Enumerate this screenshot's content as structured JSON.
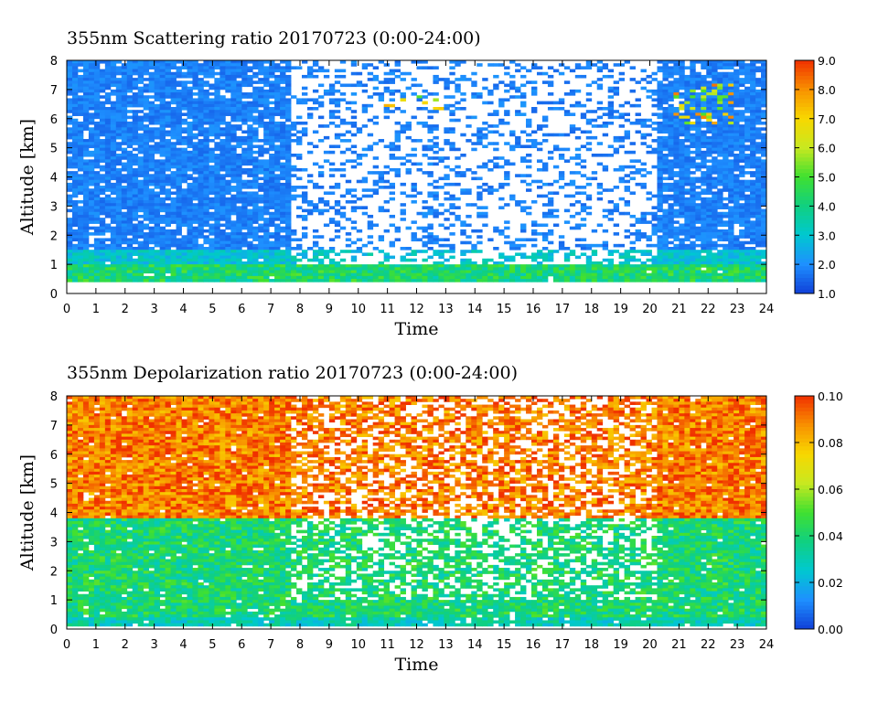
{
  "chart_data": [
    {
      "type": "heatmap",
      "title": "355nm Scattering ratio  20170723 (0:00-24:00)",
      "xlabel": "Time",
      "ylabel": "Altitude [km]",
      "xlim": [
        0,
        24
      ],
      "ylim": [
        0,
        8
      ],
      "x_ticks": [
        "0",
        "1",
        "2",
        "3",
        "4",
        "5",
        "6",
        "7",
        "8",
        "9",
        "10",
        "11",
        "12",
        "13",
        "14",
        "15",
        "16",
        "17",
        "18",
        "19",
        "20",
        "21",
        "22",
        "23",
        "24"
      ],
      "y_ticks": [
        "0",
        "1",
        "2",
        "3",
        "4",
        "5",
        "6",
        "7",
        "8"
      ],
      "colorbar": {
        "range": [
          1.0,
          9.0
        ],
        "ticks": [
          "1.0",
          "2.0",
          "3.0",
          "4.0",
          "5.0",
          "6.0",
          "7.0",
          "8.0",
          "9.0"
        ],
        "colors": [
          "#1040d8",
          "#1e90ff",
          "#00c8d0",
          "#10d080",
          "#40e030",
          "#c8e820",
          "#f8d800",
          "#f89000",
          "#f03000"
        ]
      },
      "dominant_value": 1.8,
      "boundary_layer_top_km": 1.5,
      "clouds_present": true,
      "no_data_color": "#ffffff"
    },
    {
      "type": "heatmap",
      "title": "355nm Depolarization ratio  20170723 (0:00-24:00)",
      "xlabel": "Time",
      "ylabel": "Altitude [km]",
      "xlim": [
        0,
        24
      ],
      "ylim": [
        0,
        8
      ],
      "x_ticks": [
        "0",
        "1",
        "2",
        "3",
        "4",
        "5",
        "6",
        "7",
        "8",
        "9",
        "10",
        "11",
        "12",
        "13",
        "14",
        "15",
        "16",
        "17",
        "18",
        "19",
        "20",
        "21",
        "22",
        "23",
        "24"
      ],
      "y_ticks": [
        "0",
        "1",
        "2",
        "3",
        "4",
        "5",
        "6",
        "7",
        "8"
      ],
      "colorbar": {
        "range": [
          0.0,
          0.1
        ],
        "ticks": [
          "0.00",
          "0.02",
          "0.04",
          "0.06",
          "0.08",
          "0.10"
        ],
        "colors": [
          "#1040d8",
          "#1e90ff",
          "#00c8d0",
          "#10d080",
          "#40e030",
          "#c8e820",
          "#f8d800",
          "#f89000",
          "#f03000"
        ]
      },
      "low_layer_value": 0.04,
      "upper_layer_value": 0.09,
      "no_data_color": "#ffffff"
    }
  ]
}
